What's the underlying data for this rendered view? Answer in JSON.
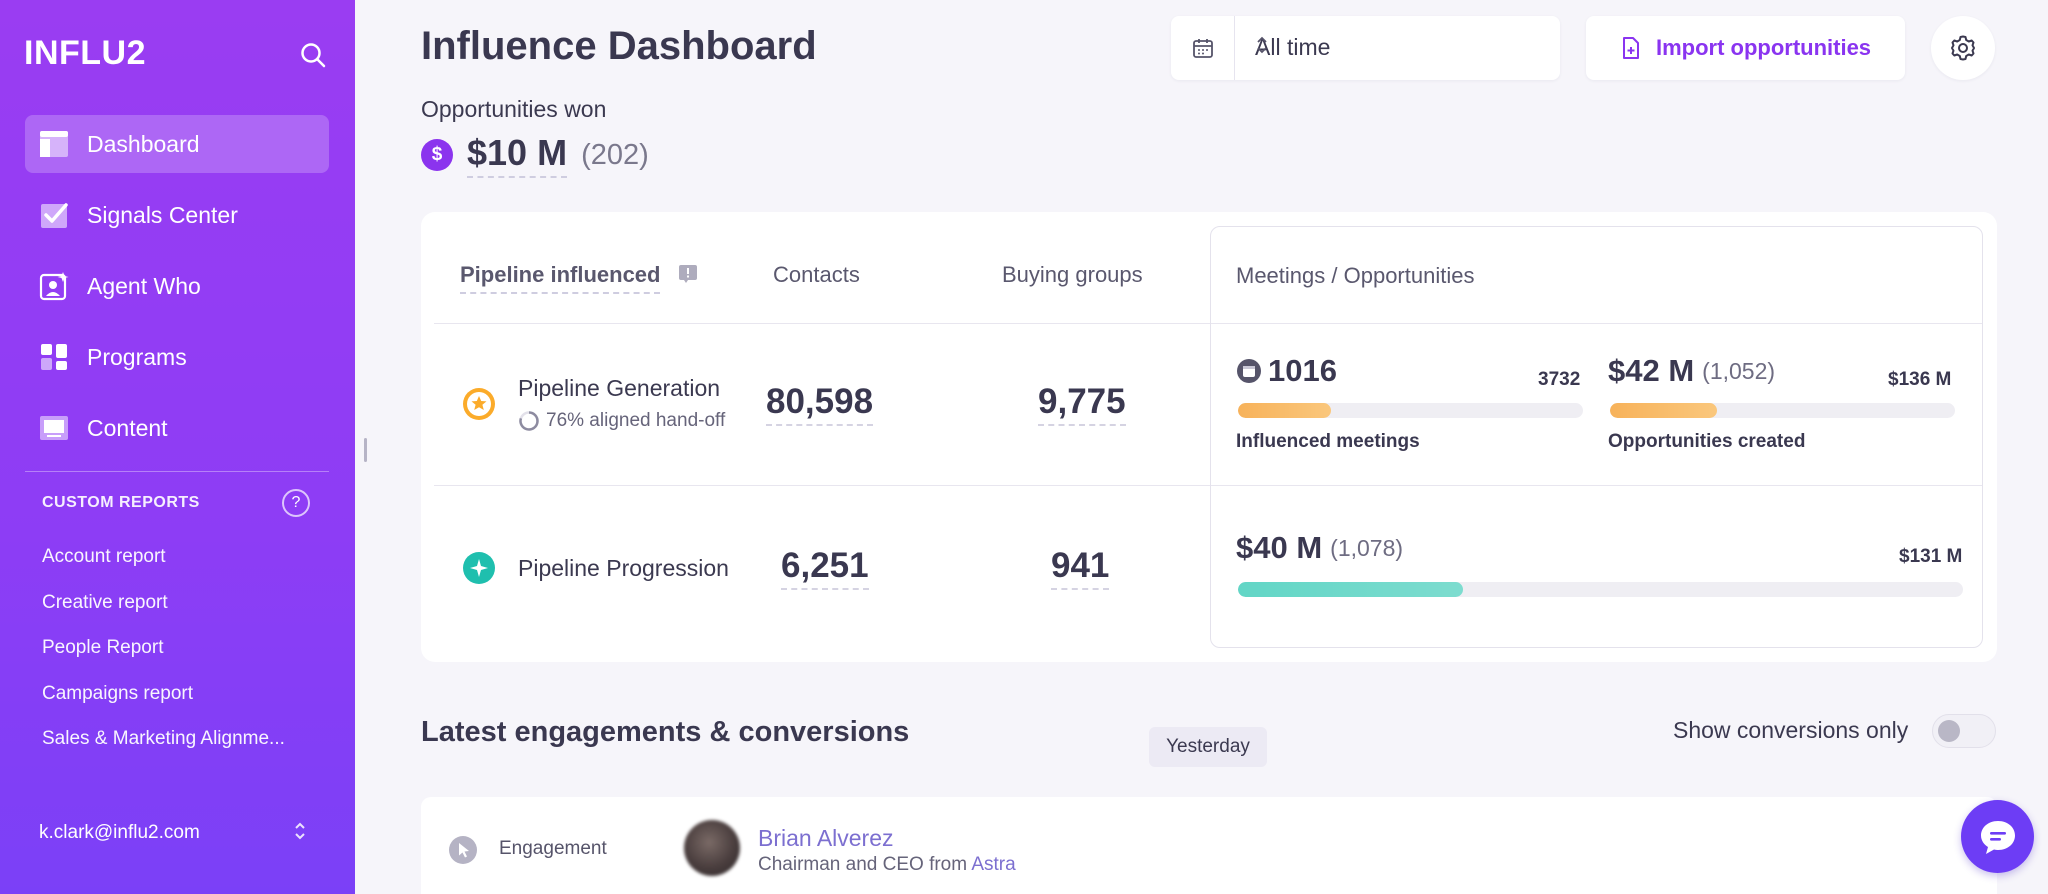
{
  "sidebar": {
    "logo": "INFLU2",
    "nav": [
      {
        "label": "Dashboard",
        "icon": "dashboard-icon",
        "active": true
      },
      {
        "label": "Signals Center",
        "icon": "checkbox-icon"
      },
      {
        "label": "Agent Who",
        "icon": "agent-icon"
      },
      {
        "label": "Programs",
        "icon": "grid-icon"
      },
      {
        "label": "Content",
        "icon": "monitor-icon"
      }
    ],
    "custom_reports_title": "CUSTOM REPORTS",
    "help_glyph": "?",
    "reports": [
      "Account report",
      "Creative report",
      "People Report",
      "Campaigns report",
      "Sales & Marketing Alignme..."
    ],
    "user_email": "k.clark@influ2.com"
  },
  "header": {
    "title": "Influence Dashboard",
    "date_range": "All time",
    "import_label": "Import opportunities"
  },
  "opportunities": {
    "label": "Opportunities won",
    "coin": "$",
    "value": "$10 M",
    "count": "(202)"
  },
  "pipeline": {
    "tabs": [
      "Pipeline influenced",
      "Contacts",
      "Buying groups"
    ],
    "meetings_header": "Meetings / Opportunities",
    "generation": {
      "label": "Pipeline Generation",
      "aligned": "76% aligned hand-off",
      "contacts": "80,598",
      "buying_groups": "9,775",
      "meetings_value": "1016",
      "meetings_max": "3732",
      "meetings_fraction": 0.27,
      "meetings_label": "Influenced meetings",
      "opps_value": "$42 M",
      "opps_count": "(1,052)",
      "opps_max": "$136 M",
      "opps_fraction": 0.31,
      "opps_label": "Opportunities created"
    },
    "progression": {
      "label": "Pipeline Progression",
      "contacts": "6,251",
      "buying_groups": "941",
      "value": "$40 M",
      "count": "(1,078)",
      "max": "$131 M",
      "fraction": 0.31
    }
  },
  "engagements": {
    "title": "Latest engagements & conversions",
    "day": "Yesterday",
    "toggle_label": "Show conversions only",
    "toggle_on": false,
    "first": {
      "type": "Engagement",
      "name": "Brian Alverez",
      "title": "Chairman and CEO from",
      "company": "Astra"
    }
  },
  "colors": {
    "sidebar": "#9a3df2",
    "accent": "#8a34f0",
    "orange_bar": "#f7b862",
    "teal_bar": "#5ccfc0",
    "chat": "#6d3df5"
  }
}
